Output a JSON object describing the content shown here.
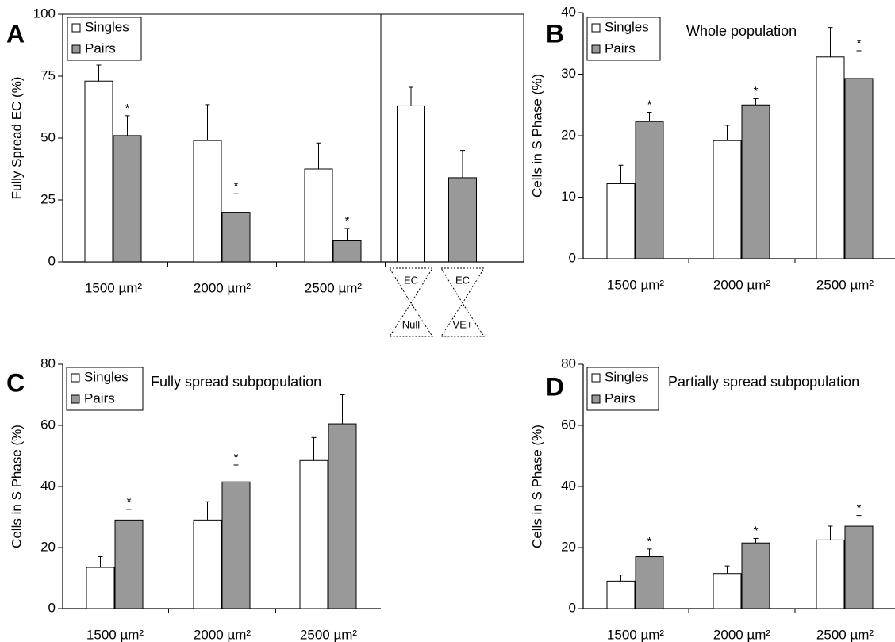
{
  "chart_data": [
    {
      "type": "bar",
      "label": "A",
      "y_label": "Fully Spread EC (%)",
      "categories": [
        "1500 µm²",
        "2000 µm²",
        "2500 µm²"
      ],
      "series": [
        {
          "name": "Singles",
          "color": "#ffffff",
          "values": [
            73,
            49,
            37.5
          ],
          "errors": [
            6.5,
            14.5,
            10.5
          ]
        },
        {
          "name": "Pairs",
          "color": "#999999",
          "values": [
            51,
            20,
            8.5
          ],
          "errors": [
            8,
            7.5,
            5
          ],
          "markers": [
            "*",
            "*",
            "*"
          ]
        }
      ],
      "inset": [
        {
          "top": "EC",
          "bottom": "Null",
          "value": 63,
          "error": 7.5,
          "color": "#ffffff"
        },
        {
          "top": "EC",
          "bottom": "VE+",
          "value": 34,
          "error": 11,
          "color": "#999999"
        }
      ],
      "ylim": [
        0,
        100
      ],
      "yticks": [
        0,
        25,
        50,
        75,
        100
      ]
    },
    {
      "type": "bar",
      "label": "B",
      "title": "Whole population",
      "y_label": "Cells in S Phase (%)",
      "categories": [
        "1500 µm²",
        "2000 µm²",
        "2500 µm²"
      ],
      "series": [
        {
          "name": "Singles",
          "color": "#ffffff",
          "values": [
            12.2,
            19.2,
            32.8
          ],
          "errors": [
            3,
            2.5,
            4.8
          ]
        },
        {
          "name": "Pairs",
          "color": "#999999",
          "values": [
            22.3,
            25,
            29.3
          ],
          "errors": [
            1.5,
            1,
            4.5
          ],
          "markers": [
            "*",
            "*",
            "*"
          ]
        }
      ],
      "ylim": [
        0,
        40
      ],
      "yticks": [
        0,
        10,
        20,
        30,
        40
      ]
    },
    {
      "type": "bar",
      "label": "C",
      "title": "Fully spread subpopulation",
      "y_label": "Cells in S Phase (%)",
      "categories": [
        "1500 µm²",
        "2000 µm²",
        "2500 µm²"
      ],
      "series": [
        {
          "name": "Singles",
          "color": "#ffffff",
          "values": [
            13.5,
            29,
            48.5
          ],
          "errors": [
            3.5,
            6,
            7.5
          ]
        },
        {
          "name": "Pairs",
          "color": "#999999",
          "values": [
            29,
            41.5,
            60.5
          ],
          "errors": [
            3.5,
            5.5,
            9.5
          ],
          "markers": [
            "*",
            "*",
            null
          ]
        }
      ],
      "ylim": [
        0,
        80
      ],
      "yticks": [
        0,
        20,
        40,
        60,
        80
      ]
    },
    {
      "type": "bar",
      "label": "D",
      "title": "Partially spread subpopulation",
      "y_label": "Cells in S Phase (%)",
      "categories": [
        "1500 µm²",
        "2000 µm²",
        "2500 µm²"
      ],
      "series": [
        {
          "name": "Singles",
          "color": "#ffffff",
          "values": [
            9,
            11.5,
            22.5
          ],
          "errors": [
            2,
            2.5,
            4.5
          ]
        },
        {
          "name": "Pairs",
          "color": "#999999",
          "values": [
            17,
            21.5,
            27
          ],
          "errors": [
            2.5,
            1.5,
            3.5
          ],
          "markers": [
            "*",
            "*",
            "*"
          ]
        }
      ],
      "ylim": [
        0,
        80
      ],
      "yticks": [
        0,
        20,
        40,
        60,
        80
      ]
    }
  ]
}
